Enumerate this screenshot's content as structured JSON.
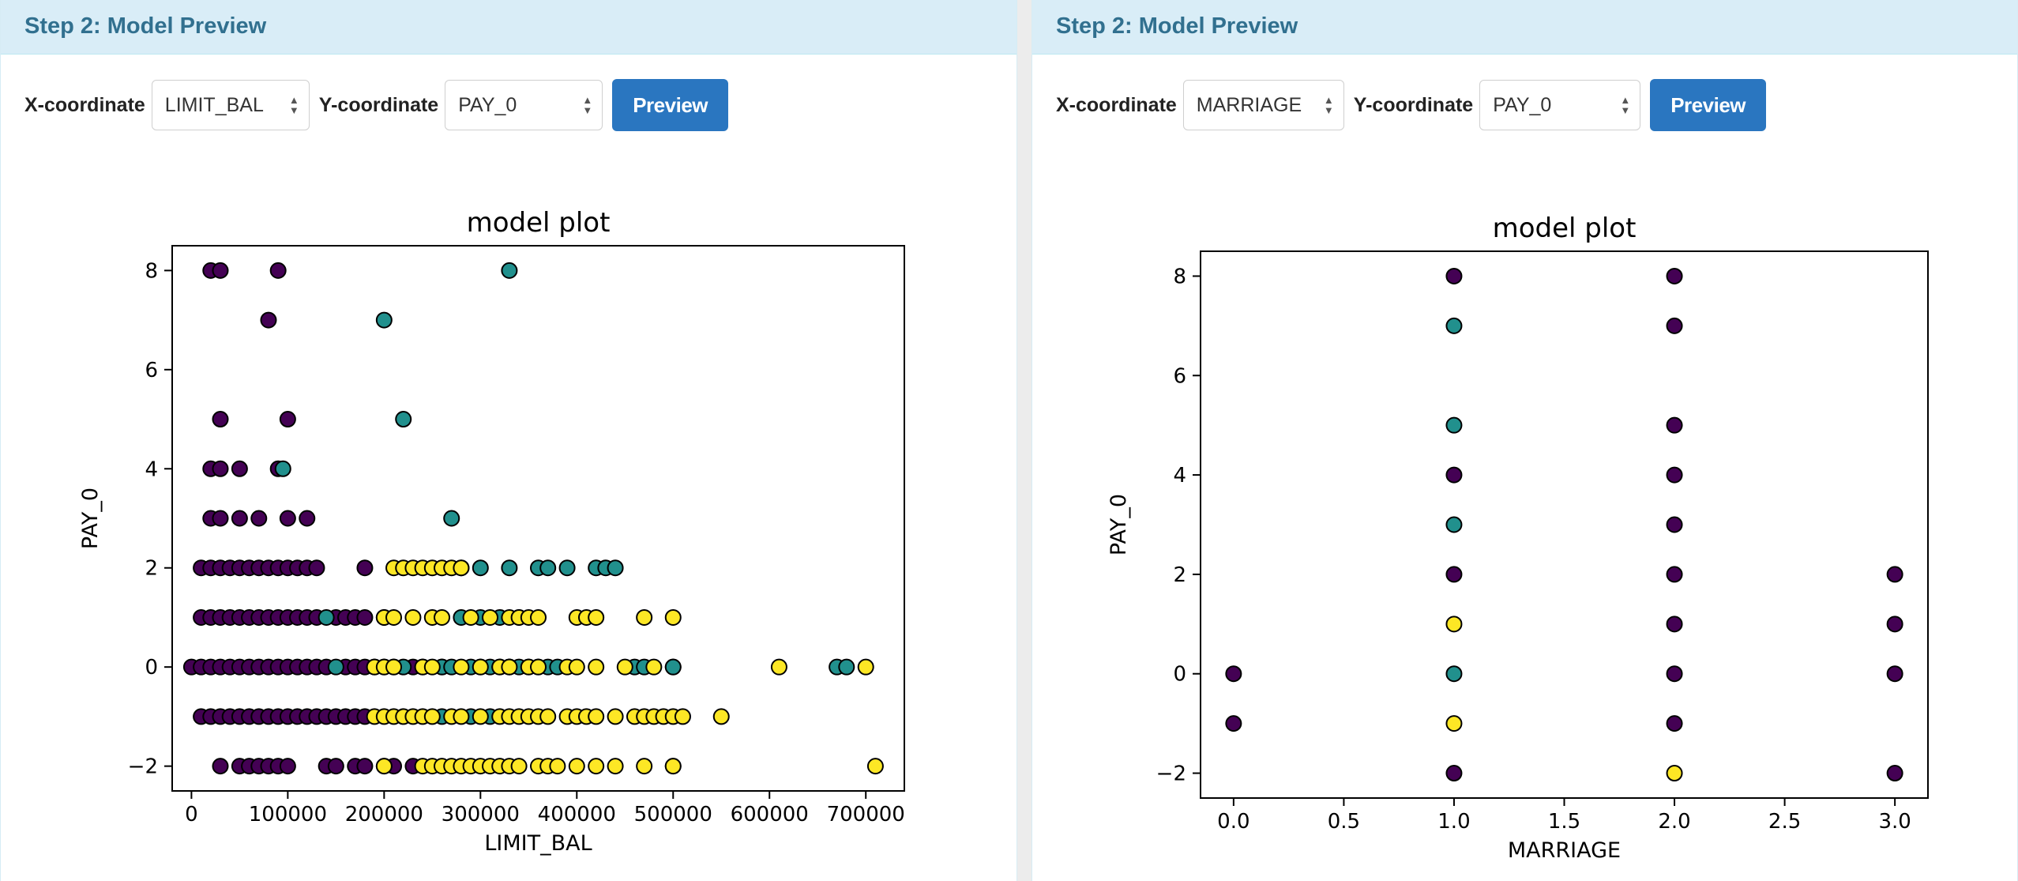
{
  "panels": [
    {
      "heading": "Step 2: Model Preview",
      "x_label": "X-coordinate",
      "x_value": "LIMIT_BAL",
      "y_label": "Y-coordinate",
      "y_value": "PAY_0",
      "button": "Preview"
    },
    {
      "heading": "Step 2: Model Preview",
      "x_label": "X-coordinate",
      "x_value": "MARRIAGE",
      "y_label": "Y-coordinate",
      "y_value": "PAY_0",
      "button": "Preview"
    }
  ],
  "chart_data": [
    {
      "type": "scatter",
      "title": "model plot",
      "xlabel": "LIMIT_BAL",
      "ylabel": "PAY_0",
      "xlim": [
        -20000,
        740000
      ],
      "ylim": [
        -2.5,
        8.5
      ],
      "xticks": [
        0,
        100000,
        200000,
        300000,
        400000,
        500000,
        600000,
        700000
      ],
      "yticks": [
        -2,
        0,
        2,
        4,
        6,
        8
      ],
      "colors": {
        "purple": "#440154",
        "teal": "#21908d",
        "yellow": "#fde725"
      },
      "series": [
        {
          "color": "purple",
          "points": [
            [
              20000,
              8
            ],
            [
              30000,
              8
            ],
            [
              90000,
              8
            ],
            [
              80000,
              7
            ],
            [
              30000,
              5
            ],
            [
              100000,
              5
            ],
            [
              20000,
              4
            ],
            [
              30000,
              4
            ],
            [
              50000,
              4
            ],
            [
              90000,
              4
            ],
            [
              20000,
              3
            ],
            [
              30000,
              3
            ],
            [
              50000,
              3
            ],
            [
              70000,
              3
            ],
            [
              100000,
              3
            ],
            [
              120000,
              3
            ],
            [
              10000,
              2
            ],
            [
              20000,
              2
            ],
            [
              30000,
              2
            ],
            [
              40000,
              2
            ],
            [
              50000,
              2
            ],
            [
              60000,
              2
            ],
            [
              70000,
              2
            ],
            [
              80000,
              2
            ],
            [
              90000,
              2
            ],
            [
              100000,
              2
            ],
            [
              110000,
              2
            ],
            [
              120000,
              2
            ],
            [
              130000,
              2
            ],
            [
              180000,
              2
            ],
            [
              10000,
              1
            ],
            [
              20000,
              1
            ],
            [
              30000,
              1
            ],
            [
              40000,
              1
            ],
            [
              50000,
              1
            ],
            [
              60000,
              1
            ],
            [
              70000,
              1
            ],
            [
              80000,
              1
            ],
            [
              90000,
              1
            ],
            [
              100000,
              1
            ],
            [
              110000,
              1
            ],
            [
              120000,
              1
            ],
            [
              130000,
              1
            ],
            [
              150000,
              1
            ],
            [
              160000,
              1
            ],
            [
              170000,
              1
            ],
            [
              180000,
              1
            ],
            [
              200000,
              1
            ],
            [
              0,
              0
            ],
            [
              10000,
              0
            ],
            [
              20000,
              0
            ],
            [
              30000,
              0
            ],
            [
              40000,
              0
            ],
            [
              50000,
              0
            ],
            [
              60000,
              0
            ],
            [
              70000,
              0
            ],
            [
              80000,
              0
            ],
            [
              90000,
              0
            ],
            [
              100000,
              0
            ],
            [
              110000,
              0
            ],
            [
              120000,
              0
            ],
            [
              130000,
              0
            ],
            [
              140000,
              0
            ],
            [
              160000,
              0
            ],
            [
              170000,
              0
            ],
            [
              180000,
              0
            ],
            [
              190000,
              0
            ],
            [
              200000,
              0
            ],
            [
              210000,
              0
            ],
            [
              230000,
              0
            ],
            [
              260000,
              0
            ],
            [
              330000,
              0
            ],
            [
              360000,
              0
            ],
            [
              500000,
              0
            ],
            [
              10000,
              -1
            ],
            [
              20000,
              -1
            ],
            [
              30000,
              -1
            ],
            [
              40000,
              -1
            ],
            [
              50000,
              -1
            ],
            [
              60000,
              -1
            ],
            [
              70000,
              -1
            ],
            [
              80000,
              -1
            ],
            [
              90000,
              -1
            ],
            [
              100000,
              -1
            ],
            [
              110000,
              -1
            ],
            [
              120000,
              -1
            ],
            [
              130000,
              -1
            ],
            [
              140000,
              -1
            ],
            [
              150000,
              -1
            ],
            [
              160000,
              -1
            ],
            [
              170000,
              -1
            ],
            [
              180000,
              -1
            ],
            [
              30000,
              -2
            ],
            [
              50000,
              -2
            ],
            [
              60000,
              -2
            ],
            [
              70000,
              -2
            ],
            [
              80000,
              -2
            ],
            [
              90000,
              -2
            ],
            [
              100000,
              -2
            ],
            [
              140000,
              -2
            ],
            [
              150000,
              -2
            ],
            [
              170000,
              -2
            ],
            [
              180000,
              -2
            ],
            [
              210000,
              -2
            ],
            [
              230000,
              -2
            ]
          ]
        },
        {
          "color": "teal",
          "points": [
            [
              330000,
              8
            ],
            [
              200000,
              7
            ],
            [
              220000,
              5
            ],
            [
              95000,
              4
            ],
            [
              270000,
              3
            ],
            [
              280000,
              2
            ],
            [
              300000,
              2
            ],
            [
              330000,
              2
            ],
            [
              360000,
              2
            ],
            [
              370000,
              2
            ],
            [
              390000,
              2
            ],
            [
              420000,
              2
            ],
            [
              430000,
              2
            ],
            [
              440000,
              2
            ],
            [
              140000,
              1
            ],
            [
              280000,
              1
            ],
            [
              300000,
              1
            ],
            [
              320000,
              1
            ],
            [
              340000,
              1
            ],
            [
              150000,
              0
            ],
            [
              220000,
              0
            ],
            [
              240000,
              0
            ],
            [
              260000,
              0
            ],
            [
              270000,
              0
            ],
            [
              290000,
              0
            ],
            [
              300000,
              0
            ],
            [
              310000,
              0
            ],
            [
              320000,
              0
            ],
            [
              330000,
              0
            ],
            [
              340000,
              0
            ],
            [
              350000,
              0
            ],
            [
              370000,
              0
            ],
            [
              380000,
              0
            ],
            [
              460000,
              0
            ],
            [
              470000,
              0
            ],
            [
              500000,
              0
            ],
            [
              670000,
              0
            ],
            [
              680000,
              0
            ],
            [
              260000,
              -1
            ],
            [
              290000,
              -1
            ],
            [
              310000,
              -1
            ],
            [
              200000,
              -2
            ],
            [
              500000,
              -2
            ]
          ]
        },
        {
          "color": "yellow",
          "points": [
            [
              210000,
              2
            ],
            [
              220000,
              2
            ],
            [
              230000,
              2
            ],
            [
              240000,
              2
            ],
            [
              250000,
              2
            ],
            [
              260000,
              2
            ],
            [
              270000,
              2
            ],
            [
              280000,
              2
            ],
            [
              200000,
              1
            ],
            [
              210000,
              1
            ],
            [
              230000,
              1
            ],
            [
              250000,
              1
            ],
            [
              260000,
              1
            ],
            [
              290000,
              1
            ],
            [
              310000,
              1
            ],
            [
              330000,
              1
            ],
            [
              340000,
              1
            ],
            [
              350000,
              1
            ],
            [
              360000,
              1
            ],
            [
              400000,
              1
            ],
            [
              410000,
              1
            ],
            [
              420000,
              1
            ],
            [
              470000,
              1
            ],
            [
              500000,
              1
            ],
            [
              190000,
              0
            ],
            [
              200000,
              0
            ],
            [
              210000,
              0
            ],
            [
              240000,
              0
            ],
            [
              250000,
              0
            ],
            [
              280000,
              0
            ],
            [
              300000,
              0
            ],
            [
              320000,
              0
            ],
            [
              330000,
              0
            ],
            [
              350000,
              0
            ],
            [
              360000,
              0
            ],
            [
              390000,
              0
            ],
            [
              400000,
              0
            ],
            [
              420000,
              0
            ],
            [
              450000,
              0
            ],
            [
              480000,
              0
            ],
            [
              610000,
              0
            ],
            [
              700000,
              0
            ],
            [
              190000,
              -1
            ],
            [
              200000,
              -1
            ],
            [
              210000,
              -1
            ],
            [
              220000,
              -1
            ],
            [
              230000,
              -1
            ],
            [
              240000,
              -1
            ],
            [
              250000,
              -1
            ],
            [
              270000,
              -1
            ],
            [
              280000,
              -1
            ],
            [
              300000,
              -1
            ],
            [
              320000,
              -1
            ],
            [
              330000,
              -1
            ],
            [
              340000,
              -1
            ],
            [
              350000,
              -1
            ],
            [
              360000,
              -1
            ],
            [
              370000,
              -1
            ],
            [
              390000,
              -1
            ],
            [
              400000,
              -1
            ],
            [
              410000,
              -1
            ],
            [
              420000,
              -1
            ],
            [
              440000,
              -1
            ],
            [
              460000,
              -1
            ],
            [
              470000,
              -1
            ],
            [
              480000,
              -1
            ],
            [
              490000,
              -1
            ],
            [
              500000,
              -1
            ],
            [
              510000,
              -1
            ],
            [
              550000,
              -1
            ],
            [
              200000,
              -2
            ],
            [
              240000,
              -2
            ],
            [
              250000,
              -2
            ],
            [
              260000,
              -2
            ],
            [
              270000,
              -2
            ],
            [
              280000,
              -2
            ],
            [
              290000,
              -2
            ],
            [
              300000,
              -2
            ],
            [
              310000,
              -2
            ],
            [
              320000,
              -2
            ],
            [
              330000,
              -2
            ],
            [
              340000,
              -2
            ],
            [
              360000,
              -2
            ],
            [
              370000,
              -2
            ],
            [
              380000,
              -2
            ],
            [
              400000,
              -2
            ],
            [
              420000,
              -2
            ],
            [
              440000,
              -2
            ],
            [
              470000,
              -2
            ],
            [
              500000,
              -2
            ],
            [
              710000,
              -2
            ]
          ]
        }
      ]
    },
    {
      "type": "scatter",
      "title": "model plot",
      "xlabel": "MARRIAGE",
      "ylabel": "PAY_0",
      "xlim": [
        -0.15,
        3.15
      ],
      "ylim": [
        -2.5,
        8.5
      ],
      "xticks": [
        0.0,
        0.5,
        1.0,
        1.5,
        2.0,
        2.5,
        3.0
      ],
      "yticks": [
        -2,
        0,
        2,
        4,
        6,
        8
      ],
      "colors": {
        "purple": "#440154",
        "teal": "#21908d",
        "yellow": "#fde725"
      },
      "series": [
        {
          "color": "purple",
          "points": [
            [
              0,
              0
            ],
            [
              0,
              -1
            ],
            [
              1,
              8
            ],
            [
              1,
              4
            ],
            [
              1,
              2
            ],
            [
              1,
              -2
            ],
            [
              2,
              8
            ],
            [
              2,
              7
            ],
            [
              2,
              5
            ],
            [
              2,
              4
            ],
            [
              2,
              3
            ],
            [
              2,
              2
            ],
            [
              2,
              1
            ],
            [
              2,
              0
            ],
            [
              2,
              -1
            ],
            [
              3,
              2
            ],
            [
              3,
              1
            ],
            [
              3,
              0
            ],
            [
              3,
              -2
            ]
          ]
        },
        {
          "color": "teal",
          "points": [
            [
              1,
              7
            ],
            [
              1,
              5
            ],
            [
              1,
              3
            ],
            [
              1,
              0
            ]
          ]
        },
        {
          "color": "yellow",
          "points": [
            [
              1,
              1
            ],
            [
              1,
              -1
            ],
            [
              2,
              -2
            ]
          ]
        }
      ]
    }
  ]
}
